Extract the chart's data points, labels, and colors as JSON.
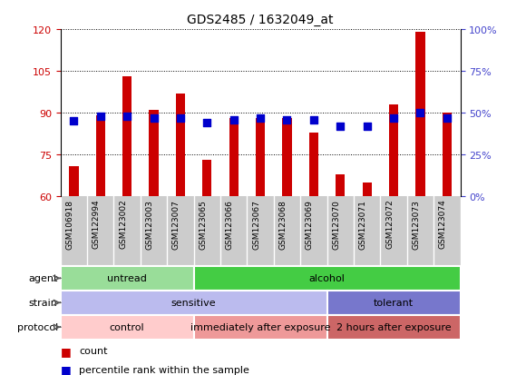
{
  "title": "GDS2485 / 1632049_at",
  "samples": [
    "GSM106918",
    "GSM122994",
    "GSM123002",
    "GSM123003",
    "GSM123007",
    "GSM123065",
    "GSM123066",
    "GSM123067",
    "GSM123068",
    "GSM123069",
    "GSM123070",
    "GSM123071",
    "GSM123072",
    "GSM123073",
    "GSM123074"
  ],
  "count_values": [
    71,
    89,
    103,
    91,
    97,
    73,
    88,
    88,
    88,
    83,
    68,
    65,
    93,
    119,
    90
  ],
  "percentile_values": [
    45,
    48,
    48,
    47,
    47,
    44,
    46,
    47,
    46,
    46,
    42,
    42,
    47,
    50,
    47
  ],
  "ylim_left": [
    60,
    120
  ],
  "ylim_right": [
    0,
    100
  ],
  "yticks_left": [
    60,
    75,
    90,
    105,
    120
  ],
  "yticks_right": [
    0,
    25,
    50,
    75,
    100
  ],
  "bar_color": "#cc0000",
  "dot_color": "#0000cc",
  "bar_width": 0.35,
  "dot_size": 40,
  "agent_labels": [
    {
      "text": "untread",
      "start": 0,
      "end": 5,
      "color": "#99dd99"
    },
    {
      "text": "alcohol",
      "start": 5,
      "end": 15,
      "color": "#44cc44"
    }
  ],
  "strain_labels": [
    {
      "text": "sensitive",
      "start": 0,
      "end": 10,
      "color": "#bbbbee"
    },
    {
      "text": "tolerant",
      "start": 10,
      "end": 15,
      "color": "#7777cc"
    }
  ],
  "protocol_labels": [
    {
      "text": "control",
      "start": 0,
      "end": 5,
      "color": "#ffcccc"
    },
    {
      "text": "immediately after exposure",
      "start": 5,
      "end": 10,
      "color": "#ee9999"
    },
    {
      "text": "2 hours after exposure",
      "start": 10,
      "end": 15,
      "color": "#cc6666"
    }
  ],
  "row_labels": [
    "agent",
    "strain",
    "protocol"
  ],
  "left_axis_color": "#cc0000",
  "right_axis_color": "#4444cc",
  "tick_bg_color": "#cccccc",
  "font_size": 8,
  "title_font_size": 10,
  "legend_items": [
    {
      "color": "#cc0000",
      "label": "count"
    },
    {
      "color": "#0000cc",
      "label": "percentile rank within the sample"
    }
  ]
}
